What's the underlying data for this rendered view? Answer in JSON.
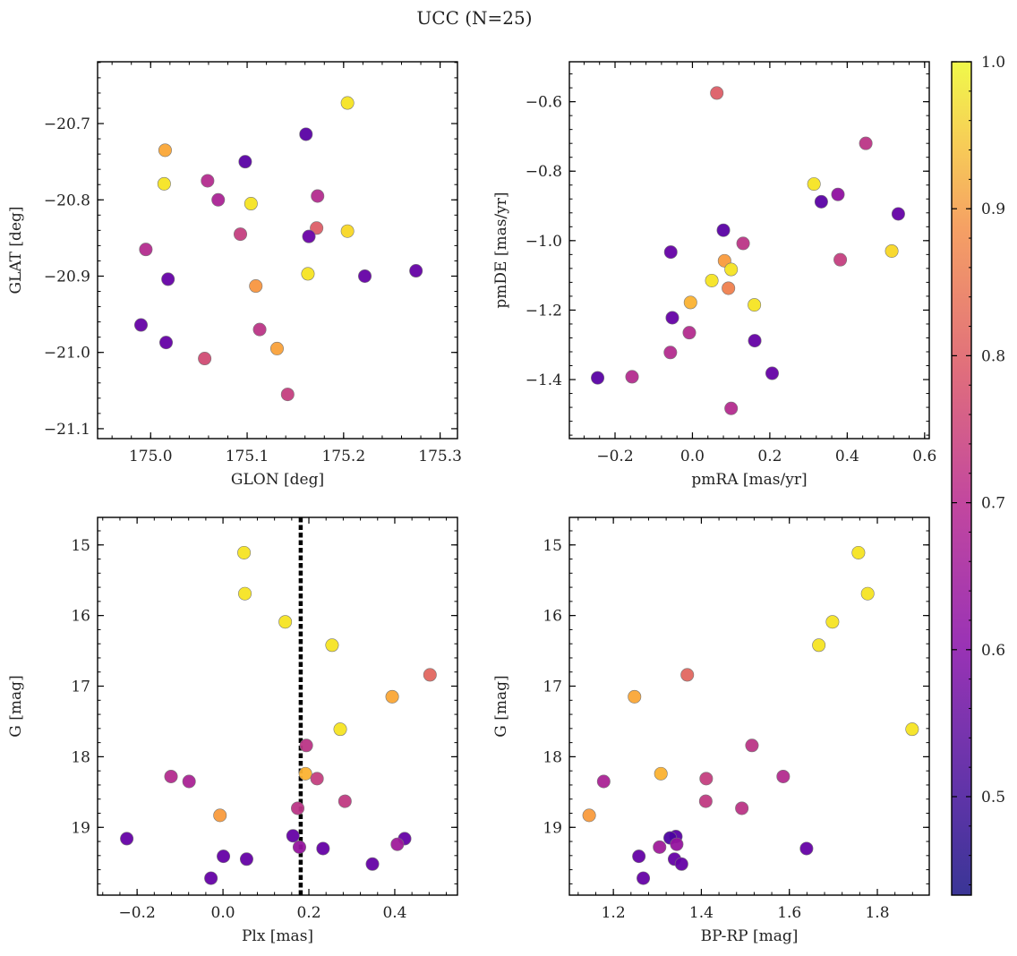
{
  "figure": {
    "title": "UCC (N=25)"
  },
  "chart_data": [
    {
      "id": "glon-glat",
      "type": "scatter",
      "xlabel": "GLON [deg]",
      "ylabel": "GLAT [deg]",
      "xlim": [
        174.945,
        175.318
      ],
      "ylim": [
        -21.113,
        -20.619
      ],
      "y_inverted": false,
      "xticks": [
        175.0,
        175.1,
        175.2,
        175.3
      ],
      "xticklabels": [
        "175.0",
        "175.1",
        "175.2",
        "175.3"
      ],
      "yticks": [
        -20.7,
        -20.8,
        -20.9,
        -21.0,
        -21.1
      ],
      "yticklabels": [
        "−20.7",
        "−20.8",
        "−20.9",
        "−21.0",
        "−21.1"
      ],
      "points": [
        {
          "x": 175.204,
          "y": -20.673,
          "c": 0.97
        },
        {
          "x": 175.015,
          "y": -20.735,
          "c": 0.87
        },
        {
          "x": 175.161,
          "y": -20.714,
          "c": 0.45
        },
        {
          "x": 175.098,
          "y": -20.75,
          "c": 0.45
        },
        {
          "x": 175.014,
          "y": -20.779,
          "c": 0.97
        },
        {
          "x": 175.059,
          "y": -20.775,
          "c": 0.62
        },
        {
          "x": 175.07,
          "y": -20.8,
          "c": 0.6
        },
        {
          "x": 175.104,
          "y": -20.805,
          "c": 0.97
        },
        {
          "x": 175.173,
          "y": -20.795,
          "c": 0.62
        },
        {
          "x": 175.172,
          "y": -20.837,
          "c": 0.73
        },
        {
          "x": 175.093,
          "y": -20.845,
          "c": 0.66
        },
        {
          "x": 175.164,
          "y": -20.848,
          "c": 0.48
        },
        {
          "x": 175.204,
          "y": -20.841,
          "c": 0.95
        },
        {
          "x": 174.995,
          "y": -20.865,
          "c": 0.62
        },
        {
          "x": 175.163,
          "y": -20.897,
          "c": 0.97
        },
        {
          "x": 175.222,
          "y": -20.9,
          "c": 0.47
        },
        {
          "x": 175.275,
          "y": -20.893,
          "c": 0.47
        },
        {
          "x": 175.018,
          "y": -20.904,
          "c": 0.47
        },
        {
          "x": 175.109,
          "y": -20.913,
          "c": 0.84
        },
        {
          "x": 174.99,
          "y": -20.964,
          "c": 0.47
        },
        {
          "x": 175.113,
          "y": -20.97,
          "c": 0.64
        },
        {
          "x": 175.016,
          "y": -20.987,
          "c": 0.47
        },
        {
          "x": 175.131,
          "y": -20.995,
          "c": 0.86
        },
        {
          "x": 175.056,
          "y": -21.008,
          "c": 0.69
        },
        {
          "x": 175.142,
          "y": -21.055,
          "c": 0.66
        }
      ]
    },
    {
      "id": "pmra-pmde",
      "type": "scatter",
      "xlabel": "pmRA [mas/yr]",
      "ylabel": "pmDE [mas/yr]",
      "xlim": [
        -0.318,
        0.612
      ],
      "ylim": [
        -1.57,
        -0.485
      ],
      "y_inverted": false,
      "xticks": [
        -0.2,
        0.0,
        0.2,
        0.4,
        0.6
      ],
      "xticklabels": [
        "−0.2",
        "0.0",
        "0.2",
        "0.4",
        "0.6"
      ],
      "yticks": [
        -0.6,
        -0.8,
        -1.0,
        -1.2,
        -1.4
      ],
      "yticklabels": [
        "−0.6",
        "−0.8",
        "−1.0",
        "−1.2",
        "−1.4"
      ],
      "points": [
        {
          "x": 0.063,
          "y": -0.575,
          "c": 0.73
        },
        {
          "x": 0.448,
          "y": -0.72,
          "c": 0.64
        },
        {
          "x": 0.314,
          "y": -0.837,
          "c": 0.97
        },
        {
          "x": 0.376,
          "y": -0.867,
          "c": 0.55
        },
        {
          "x": 0.333,
          "y": -0.888,
          "c": 0.45
        },
        {
          "x": 0.532,
          "y": -0.923,
          "c": 0.47
        },
        {
          "x": 0.08,
          "y": -0.97,
          "c": 0.45
        },
        {
          "x": 0.131,
          "y": -1.008,
          "c": 0.64
        },
        {
          "x": 0.515,
          "y": -1.03,
          "c": 0.95
        },
        {
          "x": -0.056,
          "y": -1.033,
          "c": 0.47
        },
        {
          "x": 0.382,
          "y": -1.055,
          "c": 0.66
        },
        {
          "x": 0.083,
          "y": -1.058,
          "c": 0.85
        },
        {
          "x": 0.1,
          "y": -1.083,
          "c": 0.97
        },
        {
          "x": 0.05,
          "y": -1.115,
          "c": 0.97
        },
        {
          "x": 0.093,
          "y": -1.137,
          "c": 0.8
        },
        {
          "x": -0.005,
          "y": -1.178,
          "c": 0.89
        },
        {
          "x": 0.16,
          "y": -1.185,
          "c": 0.97
        },
        {
          "x": -0.052,
          "y": -1.222,
          "c": 0.47
        },
        {
          "x": -0.008,
          "y": -1.265,
          "c": 0.62
        },
        {
          "x": 0.161,
          "y": -1.288,
          "c": 0.47
        },
        {
          "x": -0.057,
          "y": -1.322,
          "c": 0.62
        },
        {
          "x": 0.206,
          "y": -1.382,
          "c": 0.47
        },
        {
          "x": -0.156,
          "y": -1.392,
          "c": 0.62
        },
        {
          "x": -0.245,
          "y": -1.395,
          "c": 0.45
        },
        {
          "x": 0.1,
          "y": -1.483,
          "c": 0.62
        }
      ]
    },
    {
      "id": "plx-g",
      "type": "scatter",
      "xlabel": "Plx [mas]",
      "ylabel": "G [mag]",
      "xlim": [
        -0.292,
        0.546
      ],
      "ylim": [
        14.61,
        19.96
      ],
      "y_inverted": true,
      "vline": 0.181,
      "xticks": [
        -0.2,
        0.0,
        0.2,
        0.4
      ],
      "xticklabels": [
        "−0.2",
        "0.0",
        "0.2",
        "0.4"
      ],
      "yticks": [
        15,
        16,
        17,
        18,
        19
      ],
      "yticklabels": [
        "15",
        "16",
        "17",
        "18",
        "19"
      ],
      "points": [
        {
          "x": 0.049,
          "y": 15.11,
          "c": 0.97
        },
        {
          "x": 0.051,
          "y": 15.69,
          "c": 0.97
        },
        {
          "x": 0.145,
          "y": 16.09,
          "c": 0.97
        },
        {
          "x": 0.254,
          "y": 16.42,
          "c": 0.97
        },
        {
          "x": 0.482,
          "y": 16.84,
          "c": 0.75
        },
        {
          "x": 0.394,
          "y": 17.15,
          "c": 0.87
        },
        {
          "x": 0.273,
          "y": 17.61,
          "c": 0.97
        },
        {
          "x": 0.194,
          "y": 17.84,
          "c": 0.64
        },
        {
          "x": 0.192,
          "y": 18.24,
          "c": 0.89
        },
        {
          "x": -0.121,
          "y": 18.28,
          "c": 0.62
        },
        {
          "x": 0.219,
          "y": 18.31,
          "c": 0.66
        },
        {
          "x": -0.079,
          "y": 18.35,
          "c": 0.6
        },
        {
          "x": 0.284,
          "y": 18.63,
          "c": 0.65
        },
        {
          "x": 0.174,
          "y": 18.73,
          "c": 0.64
        },
        {
          "x": -0.007,
          "y": 18.83,
          "c": 0.85
        },
        {
          "x": 0.163,
          "y": 19.12,
          "c": 0.47
        },
        {
          "x": -0.224,
          "y": 19.16,
          "c": 0.47
        },
        {
          "x": 0.423,
          "y": 19.16,
          "c": 0.47
        },
        {
          "x": 0.406,
          "y": 19.24,
          "c": 0.58
        },
        {
          "x": 0.178,
          "y": 19.28,
          "c": 0.56
        },
        {
          "x": 0.233,
          "y": 19.3,
          "c": 0.47
        },
        {
          "x": 0.001,
          "y": 19.41,
          "c": 0.47
        },
        {
          "x": 0.055,
          "y": 19.45,
          "c": 0.47
        },
        {
          "x": 0.348,
          "y": 19.52,
          "c": 0.47
        },
        {
          "x": -0.028,
          "y": 19.72,
          "c": 0.47
        }
      ]
    },
    {
      "id": "bprp-g",
      "type": "scatter",
      "xlabel": "BP-RP [mag]",
      "ylabel": "G [mag]",
      "xlim": [
        1.1,
        1.918
      ],
      "ylim": [
        14.61,
        19.96
      ],
      "y_inverted": true,
      "xticks": [
        1.2,
        1.4,
        1.6,
        1.8
      ],
      "xticklabels": [
        "1.2",
        "1.4",
        "1.6",
        "1.8"
      ],
      "yticks": [
        15,
        16,
        17,
        18,
        19
      ],
      "yticklabels": [
        "15",
        "16",
        "17",
        "18",
        "19"
      ],
      "points": [
        {
          "x": 1.757,
          "y": 15.11,
          "c": 0.97
        },
        {
          "x": 1.778,
          "y": 15.69,
          "c": 0.97
        },
        {
          "x": 1.698,
          "y": 16.09,
          "c": 0.97
        },
        {
          "x": 1.667,
          "y": 16.42,
          "c": 0.97
        },
        {
          "x": 1.368,
          "y": 16.84,
          "c": 0.75
        },
        {
          "x": 1.248,
          "y": 17.15,
          "c": 0.87
        },
        {
          "x": 1.879,
          "y": 17.61,
          "c": 0.97
        },
        {
          "x": 1.515,
          "y": 17.84,
          "c": 0.64
        },
        {
          "x": 1.308,
          "y": 18.24,
          "c": 0.89
        },
        {
          "x": 1.586,
          "y": 18.28,
          "c": 0.62
        },
        {
          "x": 1.411,
          "y": 18.31,
          "c": 0.66
        },
        {
          "x": 1.178,
          "y": 18.35,
          "c": 0.6
        },
        {
          "x": 1.41,
          "y": 18.63,
          "c": 0.65
        },
        {
          "x": 1.492,
          "y": 18.73,
          "c": 0.64
        },
        {
          "x": 1.145,
          "y": 18.83,
          "c": 0.85
        },
        {
          "x": 1.342,
          "y": 19.13,
          "c": 0.45
        },
        {
          "x": 1.329,
          "y": 19.15,
          "c": 0.43
        },
        {
          "x": 1.344,
          "y": 19.24,
          "c": 0.56
        },
        {
          "x": 1.305,
          "y": 19.28,
          "c": 0.58
        },
        {
          "x": 1.639,
          "y": 19.3,
          "c": 0.47
        },
        {
          "x": 1.258,
          "y": 19.41,
          "c": 0.47
        },
        {
          "x": 1.339,
          "y": 19.45,
          "c": 0.47
        },
        {
          "x": 1.355,
          "y": 19.52,
          "c": 0.47
        },
        {
          "x": 1.268,
          "y": 19.72,
          "c": 0.47
        }
      ]
    }
  ],
  "colorbar": {
    "colormap": "plasma",
    "range": [
      0.433,
      1.0
    ],
    "ticks": [
      0.5,
      0.6,
      0.7,
      0.8,
      0.9,
      1.0
    ],
    "ticklabels": [
      "0.5",
      "0.6",
      "0.7",
      "0.8",
      "0.9",
      "1.0"
    ]
  }
}
